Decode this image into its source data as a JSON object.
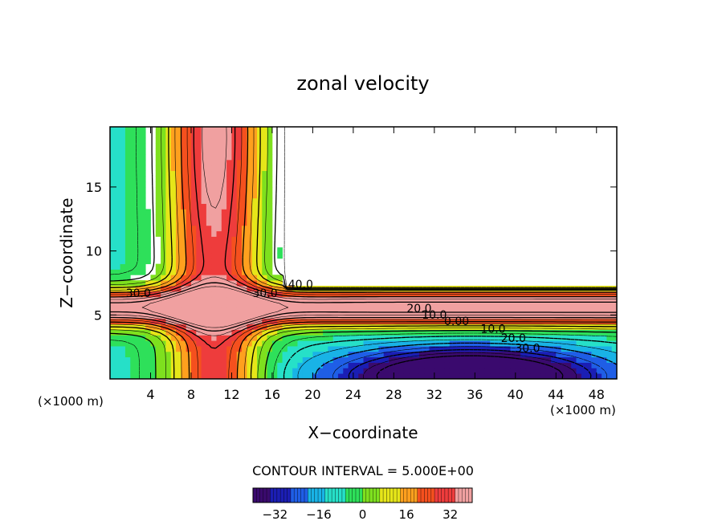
{
  "chart_data": {
    "type": "heatmap",
    "title": "zonal velocity",
    "xlabel": "X−coordinate",
    "ylabel": "Z−coordinate",
    "x_unit_left": "(×1000 m)",
    "x_unit_right": "(×1000 m)",
    "xlim": [
      0,
      50
    ],
    "ylim": [
      0,
      19.7
    ],
    "x_ticks": [
      4,
      8,
      12,
      16,
      20,
      24,
      28,
      32,
      36,
      40,
      44,
      48
    ],
    "y_ticks": [
      5,
      10,
      15
    ],
    "grid": false,
    "contour_interval_text": "CONTOUR INTERVAL = 5.000E+00",
    "contour_interval": 5,
    "value_range": [
      -40,
      40
    ],
    "colorbar_ticks": [
      -32,
      -16,
      0,
      16,
      32
    ],
    "contour_labels": [
      {
        "text": "30.0",
        "x": 2.8,
        "y": 6.4
      },
      {
        "text": "30.0",
        "x": 15.3,
        "y": 6.4
      },
      {
        "text": "40.0",
        "x": 18.8,
        "y": 7.1
      },
      {
        "text": "20.0",
        "x": 30.5,
        "y": 5.2
      },
      {
        "text": "10.0",
        "x": 32.0,
        "y": 4.7
      },
      {
        "text": "0.00",
        "x": 34.2,
        "y": 4.2
      },
      {
        "text": "10.0",
        "x": 37.8,
        "y": 3.6
      },
      {
        "text": "20.0",
        "x": 39.8,
        "y": 2.9
      },
      {
        "text": "30.0",
        "x": 41.2,
        "y": 2.1
      }
    ],
    "field_features": [
      {
        "name": "left jet column",
        "x_center": 10.3,
        "width": 13.5,
        "peak": 45
      },
      {
        "name": "low-level jet",
        "z_center": 5.6,
        "peak": 42
      },
      {
        "name": "easterly core",
        "x": 35.5,
        "z": 0.3,
        "min": -40
      }
    ]
  },
  "colormap": [
    "#3a0a6e",
    "#1b1eb4",
    "#1f5ee6",
    "#19b3e6",
    "#26e0c8",
    "#2ee05a",
    "#7ee01e",
    "#e6e619",
    "#ffa01e",
    "#f5501e",
    "#ee3c3c",
    "#f0a0a0"
  ]
}
